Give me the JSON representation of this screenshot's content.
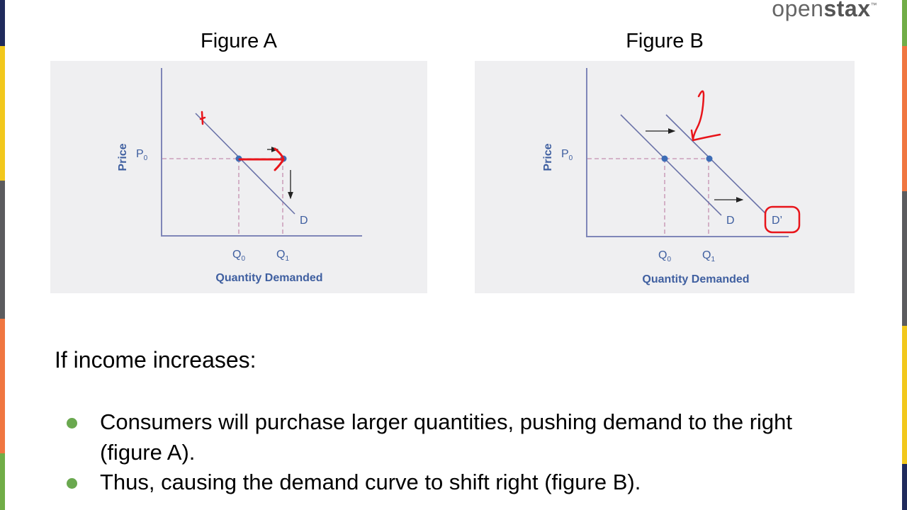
{
  "logo": {
    "text_light": "open",
    "text_bold": "stax",
    "trademark": "™"
  },
  "colors": {
    "navy": "#1f2a5c",
    "yellow": "#f2c81c",
    "gray": "#5b5b5e",
    "orange": "#f07640",
    "green": "#70ad47",
    "axis": "#7f86b8",
    "label": "#3f5fa0",
    "annotation_red": "#e8141a"
  },
  "figures": [
    {
      "title": "Figure A",
      "y_axis_label": "Price",
      "x_axis_label": "Quantity Demanded",
      "price_label": "P",
      "price_sub": "0",
      "q0_label": "Q",
      "q0_sub": "0",
      "q1_label": "Q",
      "q1_sub": "1",
      "curve_label": "D"
    },
    {
      "title": "Figure B",
      "y_axis_label": "Price",
      "x_axis_label": "Quantity Demanded",
      "price_label": "P",
      "price_sub": "0",
      "q0_label": "Q",
      "q0_sub": "0",
      "q1_label": "Q",
      "q1_sub": "1",
      "curve_label": "D",
      "shifted_curve_label": "D’"
    }
  ],
  "body": {
    "heading": "If income increases:",
    "bullets": [
      "Consumers will purchase larger quantities, pushing demand to the right (figure A).",
      "Thus, causing the demand curve to shift right (figure B)."
    ]
  }
}
